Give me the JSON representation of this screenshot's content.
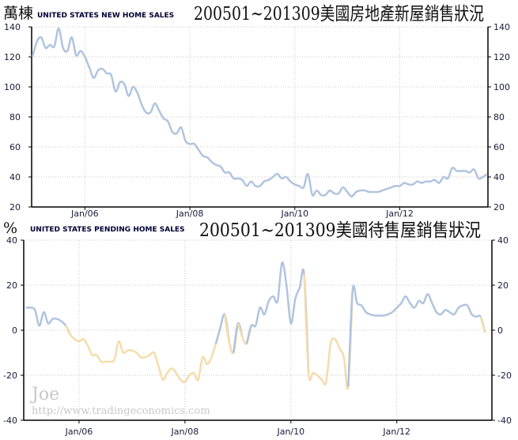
{
  "chart_data": [
    {
      "type": "line",
      "unit_label": "萬棟",
      "subtitle": "UNITED STATES NEW HOME SALES",
      "title": "200501~201309美國房地產新屋銷售狀況",
      "start": "2005-01",
      "end": "2013-09",
      "frequency": "monthly",
      "xtick_labels": [
        "Jan/06",
        "Jan/08",
        "Jan/10",
        "Jan/12"
      ],
      "ylim": [
        20,
        140
      ],
      "yticks": [
        20,
        40,
        60,
        80,
        100,
        120,
        140
      ],
      "grid": true,
      "line_color": "#b0c4de",
      "values": [
        120,
        130,
        133,
        126,
        128,
        127,
        139,
        126,
        124,
        133,
        121,
        124,
        120,
        113,
        106,
        111,
        112,
        109,
        108,
        97,
        103,
        102,
        94,
        100,
        96,
        88,
        83,
        83,
        89,
        84,
        79,
        77,
        70,
        69,
        73,
        64,
        62,
        62,
        58,
        54,
        53,
        50,
        48,
        47,
        43,
        43,
        39,
        39,
        38,
        34,
        37,
        34,
        34,
        37,
        38,
        40,
        42,
        39,
        40,
        37,
        35,
        34,
        33,
        42,
        28,
        31,
        28,
        28,
        31,
        29,
        29,
        33,
        30,
        27,
        30,
        31,
        31,
        30,
        30,
        30,
        31,
        32,
        33,
        34,
        34,
        36,
        35,
        35,
        37,
        36,
        37,
        37,
        38,
        36,
        40,
        39,
        46,
        44,
        44,
        44,
        43,
        45,
        39,
        40,
        42
      ]
    },
    {
      "type": "line",
      "unit_label": "%",
      "subtitle": "UNITED STATES PENDING HOME SALES",
      "title": "200501~201309美國待售屋銷售狀況",
      "start": "2005-01",
      "end": "2013-09",
      "frequency": "monthly",
      "xtick_labels": [
        "Jan/06",
        "Jan/08",
        "Jan/10",
        "Jan/12"
      ],
      "ylim": [
        -40,
        40
      ],
      "yticks": [
        -40,
        -20,
        0,
        20,
        40
      ],
      "grid": true,
      "positive_color": "#b0c4de",
      "negative_color": "#f5dcab",
      "values": [
        10,
        10,
        9,
        2,
        8,
        3,
        5,
        5,
        4,
        2,
        -2,
        -4,
        -5,
        -4,
        -7,
        -11,
        -11,
        -14,
        -14,
        -14,
        -13,
        -5,
        -10,
        -9,
        -9,
        -10,
        -12,
        -12,
        -11,
        -10,
        -16,
        -22,
        -19,
        -17,
        -19,
        -22,
        -23,
        -20,
        -19,
        -22,
        -12,
        -15,
        -12,
        -6,
        1,
        7,
        -5,
        -10,
        3,
        -3,
        -6,
        2,
        2,
        10,
        7,
        13,
        15,
        13,
        30,
        20,
        3,
        14,
        19,
        25,
        -19,
        -19,
        -20,
        -22,
        -23,
        -6,
        -4,
        -8,
        -12,
        -25,
        18,
        12,
        11,
        8,
        7,
        6.5,
        6.5,
        6.5,
        7,
        8,
        10,
        12,
        15,
        12,
        10,
        13,
        12,
        16,
        12,
        8,
        7,
        9,
        8,
        7,
        10,
        11,
        11,
        7,
        6,
        6,
        -1
      ]
    }
  ],
  "watermark": {
    "name": "Joe",
    "url": "http://www.tradingeconomics.com"
  }
}
